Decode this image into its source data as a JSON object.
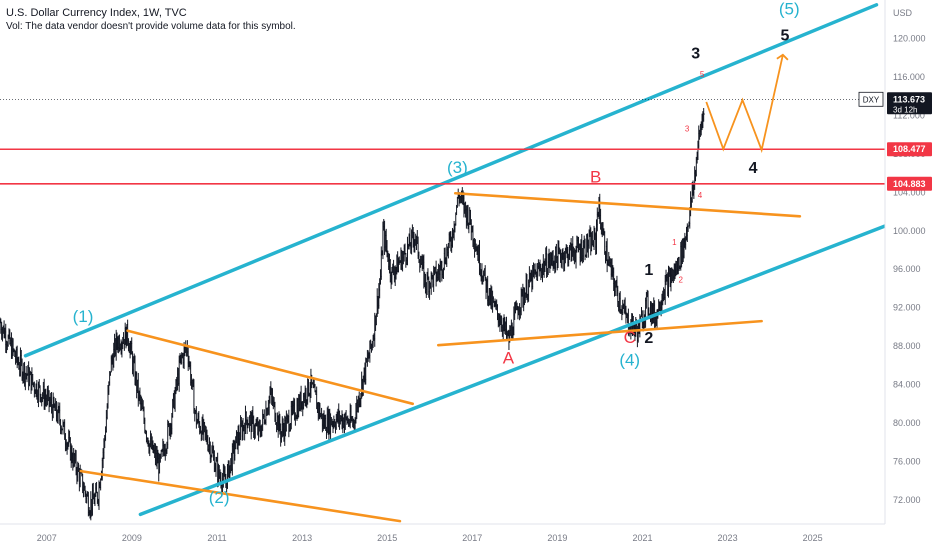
{
  "header": {
    "title": "U.S. Dollar Currency Index, 1W, TVC",
    "vol_note": "Vol: The data vendor doesn't provide volume data for this symbol."
  },
  "chart_data": {
    "type": "line",
    "subtype": "weekly price chart with Elliott wave annotations",
    "symbol": "DXY",
    "currency_label": "USD",
    "x_ticks": [
      "2007",
      "2009",
      "2011",
      "2013",
      "2015",
      "2017",
      "2019",
      "2021",
      "2023",
      "2025"
    ],
    "y_ticks": [
      72,
      76,
      80,
      84,
      88,
      92,
      96,
      100,
      104,
      108,
      112,
      116,
      120
    ],
    "y_tick_labels": [
      "72.000",
      "76.000",
      "80.000",
      "84.000",
      "88.000",
      "92.000",
      "96.000",
      "100.000",
      "104.000",
      "108.000",
      "112.000",
      "116.000",
      "120.000"
    ],
    "ylim": [
      69.5,
      124
    ],
    "xlim": [
      2006.2,
      2027.0
    ],
    "price_path": [
      [
        2006.2,
        90.5
      ],
      [
        2006.6,
        86.5
      ],
      [
        2007.0,
        84.0
      ],
      [
        2007.3,
        82.5
      ],
      [
        2007.6,
        80.5
      ],
      [
        2007.9,
        76.5
      ],
      [
        2008.15,
        73.5
      ],
      [
        2008.3,
        71.5
      ],
      [
        2008.5,
        72.5
      ],
      [
        2008.65,
        78.0
      ],
      [
        2008.8,
        86.0
      ],
      [
        2008.95,
        88.5
      ],
      [
        2009.2,
        89.2
      ],
      [
        2009.45,
        83.0
      ],
      [
        2009.7,
        78.0
      ],
      [
        2009.95,
        75.5
      ],
      [
        2010.2,
        80.0
      ],
      [
        2010.45,
        86.5
      ],
      [
        2010.6,
        88.0
      ],
      [
        2010.8,
        80.5
      ],
      [
        2011.1,
        78.0
      ],
      [
        2011.35,
        74.5
      ],
      [
        2011.5,
        73.8
      ],
      [
        2011.75,
        78.0
      ],
      [
        2012.0,
        80.5
      ],
      [
        2012.3,
        79.0
      ],
      [
        2012.55,
        83.0
      ],
      [
        2012.8,
        79.0
      ],
      [
        2013.1,
        81.0
      ],
      [
        2013.5,
        84.0
      ],
      [
        2013.8,
        80.0
      ],
      [
        2014.2,
        80.5
      ],
      [
        2014.5,
        80.0
      ],
      [
        2014.7,
        84.0
      ],
      [
        2014.95,
        88.5
      ],
      [
        2015.15,
        95.5
      ],
      [
        2015.2,
        100.0
      ],
      [
        2015.4,
        95.5
      ],
      [
        2015.7,
        97.5
      ],
      [
        2015.95,
        99.5
      ],
      [
        2016.2,
        94.5
      ],
      [
        2016.5,
        95.5
      ],
      [
        2016.8,
        99.0
      ],
      [
        2016.98,
        103.8
      ],
      [
        2017.25,
        101.0
      ],
      [
        2017.55,
        95.5
      ],
      [
        2017.75,
        92.5
      ],
      [
        2018.0,
        90.5
      ],
      [
        2018.15,
        88.5
      ],
      [
        2018.4,
        92.5
      ],
      [
        2018.7,
        95.0
      ],
      [
        2019.0,
        96.5
      ],
      [
        2019.4,
        97.5
      ],
      [
        2019.8,
        98.0
      ],
      [
        2020.2,
        99.0
      ],
      [
        2020.25,
        102.8
      ],
      [
        2020.45,
        97.5
      ],
      [
        2020.7,
        93.5
      ],
      [
        2020.95,
        90.5
      ],
      [
        2021.2,
        89.5
      ],
      [
        2021.4,
        92.5
      ],
      [
        2021.6,
        91.0
      ],
      [
        2021.8,
        94.0
      ],
      [
        2022.1,
        96.0
      ],
      [
        2022.3,
        99.0
      ],
      [
        2022.5,
        104.5
      ],
      [
        2022.6,
        108.8
      ],
      [
        2022.7,
        111.5
      ],
      [
        2022.75,
        113.673
      ]
    ],
    "current_price": "113.673",
    "current_countdown": "3d 12h",
    "horizontal_levels": [
      {
        "value": 108.477,
        "label": "108.477",
        "color": "#f23645"
      },
      {
        "value": 104.883,
        "label": "104.883",
        "color": "#f23645"
      }
    ],
    "trend_lines": [
      {
        "color": "#26b3cf",
        "points": [
          [
            2006.8,
            87.0
          ],
          [
            2026.8,
            123.5
          ]
        ]
      },
      {
        "color": "#26b3cf",
        "points": [
          [
            2009.5,
            70.5
          ],
          [
            2027.0,
            100.5
          ]
        ]
      },
      {
        "color": "#f7931e",
        "points": [
          [
            2016.5,
            88.1
          ],
          [
            2024.1,
            90.6
          ]
        ]
      },
      {
        "color": "#f7931e",
        "points": [
          [
            2016.9,
            103.9
          ],
          [
            2025.0,
            101.5
          ]
        ]
      },
      {
        "color": "#f7931e",
        "points": [
          [
            2009.2,
            89.6
          ],
          [
            2015.9,
            82.0
          ]
        ]
      },
      {
        "color": "#f7931e",
        "points": [
          [
            2008.1,
            75.0
          ],
          [
            2015.6,
            69.8
          ]
        ]
      }
    ],
    "projection_path": [
      [
        2022.8,
        113.4
      ],
      [
        2023.2,
        108.5
      ],
      [
        2023.65,
        113.6
      ],
      [
        2024.1,
        108.4
      ],
      [
        2024.6,
        118.3
      ]
    ],
    "wave_labels": [
      {
        "text": "(1)",
        "x": 2008.15,
        "y": 90.5,
        "color": "#26b3cf"
      },
      {
        "text": "(2)",
        "x": 2011.35,
        "y": 71.7,
        "color": "#26b3cf"
      },
      {
        "text": "(3)",
        "x": 2016.95,
        "y": 106.0,
        "color": "#26b3cf"
      },
      {
        "text": "(4)",
        "x": 2021.0,
        "y": 86.0,
        "color": "#26b3cf"
      },
      {
        "text": "(5)",
        "x": 2024.75,
        "y": 122.5,
        "color": "#26b3cf"
      },
      {
        "text": "A",
        "x": 2018.15,
        "y": 86.2,
        "color": "#f23645"
      },
      {
        "text": "B",
        "x": 2020.2,
        "y": 105.0,
        "color": "#f23645"
      },
      {
        "text": "C",
        "x": 2021.0,
        "y": 88.3,
        "color": "#f23645"
      },
      {
        "text": "1",
        "x": 2021.45,
        "y": 95.4,
        "color": "#131722"
      },
      {
        "text": "2",
        "x": 2021.45,
        "y": 88.3,
        "color": "#131722"
      },
      {
        "text": "3",
        "x": 2022.55,
        "y": 117.9,
        "color": "#131722"
      },
      {
        "text": "4",
        "x": 2023.9,
        "y": 106.0,
        "color": "#131722"
      },
      {
        "text": "5",
        "x": 2024.65,
        "y": 119.8,
        "color": "#131722"
      },
      {
        "text": "1",
        "x": 2022.05,
        "y": 98.5,
        "color": "#f23645",
        "small": true
      },
      {
        "text": "2",
        "x": 2022.2,
        "y": 94.6,
        "color": "#f23645",
        "small": true
      },
      {
        "text": "3",
        "x": 2022.35,
        "y": 110.3,
        "color": "#f23645",
        "small": true
      },
      {
        "text": "4",
        "x": 2022.65,
        "y": 103.4,
        "color": "#f23645",
        "small": true
      },
      {
        "text": "5",
        "x": 2022.7,
        "y": 116.0,
        "color": "#f23645",
        "small": true
      }
    ]
  }
}
